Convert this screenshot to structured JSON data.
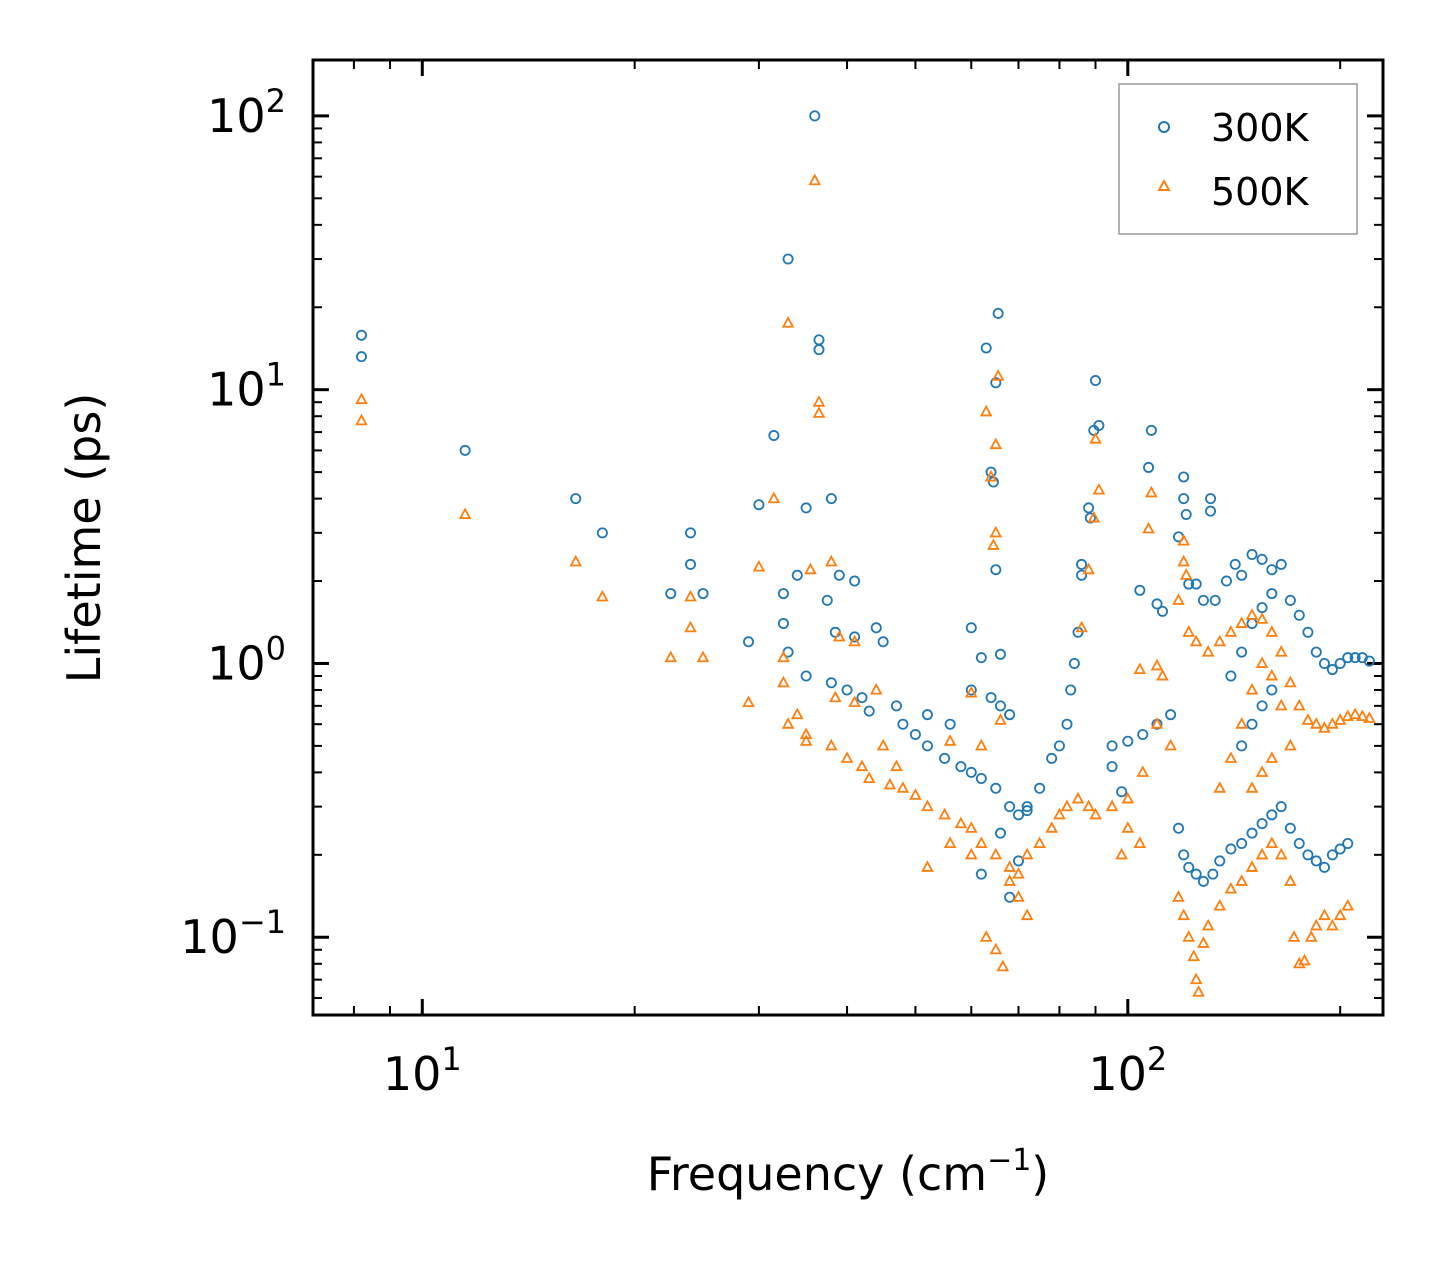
{
  "chart_data": {
    "type": "scatter",
    "xscale": "log",
    "yscale": "log",
    "xlim": [
      7.0,
      230
    ],
    "ylim": [
      0.052,
      160
    ],
    "xlabel": {
      "text": "Frequency (cm",
      "sup": "−1",
      "suffix": ")"
    },
    "ylabel": "Lifetime (ps)",
    "xticks": [
      {
        "value": 10,
        "base": "10",
        "exp": "1"
      },
      {
        "value": 100,
        "base": "10",
        "exp": "2"
      }
    ],
    "yticks": [
      {
        "value": 0.1,
        "base": "10",
        "exp": "−1"
      },
      {
        "value": 1,
        "base": "10",
        "exp": "0"
      },
      {
        "value": 10,
        "base": "10",
        "exp": "1"
      },
      {
        "value": 100,
        "base": "10",
        "exp": "2"
      }
    ],
    "legend": {
      "position": "top-right"
    },
    "series": [
      {
        "name": "300K",
        "marker": "circle",
        "color": "#1f77b4",
        "points": [
          [
            8.2,
            15.8
          ],
          [
            8.2,
            13.2
          ],
          [
            11.5,
            6.0
          ],
          [
            16.5,
            4.0
          ],
          [
            18,
            3.0
          ],
          [
            22.5,
            1.8
          ],
          [
            24,
            3.0
          ],
          [
            24,
            2.3
          ],
          [
            25,
            1.8
          ],
          [
            29,
            1.2
          ],
          [
            30,
            3.8
          ],
          [
            31.5,
            6.8
          ],
          [
            32.5,
            1.8
          ],
          [
            33,
            30.0
          ],
          [
            34,
            2.1
          ],
          [
            35,
            3.7
          ],
          [
            36,
            100
          ],
          [
            36.5,
            15.2
          ],
          [
            36.5,
            14.0
          ],
          [
            37.5,
            1.7
          ],
          [
            38,
            4.0
          ],
          [
            38.5,
            1.3
          ],
          [
            39,
            2.1
          ],
          [
            41,
            2.0
          ],
          [
            32.5,
            1.4
          ],
          [
            33,
            1.1
          ],
          [
            35,
            0.9
          ],
          [
            38,
            0.85
          ],
          [
            40,
            0.8
          ],
          [
            41,
            1.25
          ],
          [
            42,
            0.75
          ],
          [
            43,
            0.67
          ],
          [
            44,
            1.35
          ],
          [
            45,
            1.2
          ],
          [
            60,
            1.35
          ],
          [
            62,
            1.05
          ],
          [
            63,
            14.2
          ],
          [
            64,
            5.0
          ],
          [
            64.5,
            4.6
          ],
          [
            65,
            10.6
          ],
          [
            65.5,
            19.0
          ],
          [
            65,
            2.2
          ],
          [
            66,
            1.08
          ],
          [
            90,
            10.8
          ],
          [
            91,
            7.4
          ],
          [
            89.5,
            7.1
          ],
          [
            108,
            7.1
          ],
          [
            107,
            5.2
          ],
          [
            120,
            4.8
          ],
          [
            120,
            4.0
          ],
          [
            121,
            3.5
          ],
          [
            131,
            4.0
          ],
          [
            131,
            3.6
          ],
          [
            88,
            3.7
          ],
          [
            88.5,
            3.4
          ],
          [
            86,
            2.3
          ],
          [
            86,
            2.1
          ],
          [
            104,
            1.85
          ],
          [
            110,
            1.65
          ],
          [
            112,
            1.55
          ],
          [
            118,
            2.9
          ],
          [
            122,
            1.95
          ],
          [
            125,
            1.95
          ],
          [
            128,
            1.7
          ],
          [
            133,
            1.7
          ],
          [
            138,
            2.0
          ],
          [
            142,
            2.3
          ],
          [
            145,
            2.1
          ],
          [
            150,
            2.5
          ],
          [
            155,
            2.4
          ],
          [
            160,
            2.2
          ],
          [
            165,
            2.3
          ],
          [
            170,
            1.7
          ],
          [
            175,
            1.5
          ],
          [
            180,
            1.3
          ],
          [
            185,
            1.1
          ],
          [
            190,
            1.0
          ],
          [
            195,
            0.95
          ],
          [
            200,
            1.0
          ],
          [
            205,
            1.05
          ],
          [
            210,
            1.05
          ],
          [
            215,
            1.05
          ],
          [
            220,
            1.02
          ],
          [
            85,
            1.3
          ],
          [
            84,
            1.0
          ],
          [
            83,
            0.8
          ],
          [
            82,
            0.6
          ],
          [
            80,
            0.5
          ],
          [
            78,
            0.45
          ],
          [
            95,
            0.5
          ],
          [
            100,
            0.52
          ],
          [
            105,
            0.55
          ],
          [
            110,
            0.6
          ],
          [
            115,
            0.65
          ],
          [
            118,
            0.25
          ],
          [
            120,
            0.2
          ],
          [
            122,
            0.18
          ],
          [
            125,
            0.17
          ],
          [
            128,
            0.16
          ],
          [
            132,
            0.17
          ],
          [
            135,
            0.19
          ],
          [
            140,
            0.21
          ],
          [
            145,
            0.22
          ],
          [
            150,
            0.24
          ],
          [
            155,
            0.26
          ],
          [
            160,
            0.28
          ],
          [
            165,
            0.3
          ],
          [
            170,
            0.25
          ],
          [
            175,
            0.22
          ],
          [
            180,
            0.2
          ],
          [
            185,
            0.19
          ],
          [
            190,
            0.18
          ],
          [
            195,
            0.2
          ],
          [
            200,
            0.21
          ],
          [
            205,
            0.22
          ],
          [
            48,
            0.6
          ],
          [
            50,
            0.55
          ],
          [
            52,
            0.5
          ],
          [
            55,
            0.45
          ],
          [
            58,
            0.42
          ],
          [
            60,
            0.4
          ],
          [
            62,
            0.38
          ],
          [
            65,
            0.35
          ],
          [
            68,
            0.3
          ],
          [
            70,
            0.28
          ],
          [
            72,
            0.3
          ],
          [
            75,
            0.35
          ],
          [
            47,
            0.7
          ],
          [
            52,
            0.65
          ],
          [
            56,
            0.6
          ],
          [
            68,
            0.14
          ],
          [
            70,
            0.19
          ],
          [
            72,
            0.29
          ],
          [
            62,
            0.17
          ],
          [
            66,
            0.24
          ],
          [
            60,
            0.8
          ],
          [
            64,
            0.75
          ],
          [
            66,
            0.7
          ],
          [
            68,
            0.65
          ],
          [
            95,
            0.42
          ],
          [
            98,
            0.34
          ],
          [
            140,
            0.9
          ],
          [
            145,
            1.1
          ],
          [
            150,
            1.4
          ],
          [
            155,
            1.6
          ],
          [
            160,
            1.8
          ],
          [
            145,
            0.5
          ],
          [
            150,
            0.6
          ],
          [
            155,
            0.7
          ],
          [
            160,
            0.8
          ]
        ]
      },
      {
        "name": "500K",
        "marker": "triangle",
        "color": "#ff7f0e",
        "points": [
          [
            8.2,
            9.2
          ],
          [
            8.2,
            7.7
          ],
          [
            11.5,
            3.5
          ],
          [
            16.5,
            2.35
          ],
          [
            18,
            1.75
          ],
          [
            22.5,
            1.05
          ],
          [
            24,
            1.75
          ],
          [
            24,
            1.35
          ],
          [
            25,
            1.05
          ],
          [
            29,
            0.72
          ],
          [
            30,
            2.25
          ],
          [
            31.5,
            4.0
          ],
          [
            32.5,
            0.85
          ],
          [
            33,
            17.5
          ],
          [
            34,
            0.65
          ],
          [
            35,
            0.52
          ],
          [
            36,
            58
          ],
          [
            36.5,
            9.0
          ],
          [
            36.5,
            8.2
          ],
          [
            35.5,
            2.2
          ],
          [
            38,
            2.35
          ],
          [
            38.5,
            0.75
          ],
          [
            39,
            1.25
          ],
          [
            41,
            1.2
          ],
          [
            32.5,
            1.05
          ],
          [
            33,
            0.6
          ],
          [
            35,
            0.55
          ],
          [
            38,
            0.5
          ],
          [
            40,
            0.45
          ],
          [
            41,
            0.72
          ],
          [
            42,
            0.42
          ],
          [
            43,
            0.38
          ],
          [
            44,
            0.8
          ],
          [
            45,
            0.5
          ],
          [
            46,
            0.36
          ],
          [
            60,
            0.78
          ],
          [
            62,
            0.5
          ],
          [
            63,
            8.3
          ],
          [
            64,
            4.8
          ],
          [
            64.5,
            2.7
          ],
          [
            65,
            6.3
          ],
          [
            65.5,
            11.2
          ],
          [
            65,
            3.0
          ],
          [
            66,
            0.62
          ],
          [
            63,
            0.1
          ],
          [
            65,
            0.09
          ],
          [
            66.5,
            0.078
          ],
          [
            90,
            6.6
          ],
          [
            91,
            4.3
          ],
          [
            89.5,
            3.4
          ],
          [
            108,
            4.2
          ],
          [
            107,
            3.1
          ],
          [
            120,
            2.8
          ],
          [
            120,
            2.35
          ],
          [
            121,
            2.1
          ],
          [
            88,
            2.2
          ],
          [
            86,
            1.35
          ],
          [
            104,
            0.95
          ],
          [
            110,
            0.98
          ],
          [
            112,
            0.9
          ],
          [
            118,
            1.7
          ],
          [
            122,
            1.3
          ],
          [
            125,
            1.2
          ],
          [
            130,
            1.1
          ],
          [
            135,
            1.2
          ],
          [
            140,
            1.3
          ],
          [
            145,
            1.4
          ],
          [
            150,
            1.5
          ],
          [
            155,
            1.45
          ],
          [
            160,
            1.3
          ],
          [
            165,
            1.1
          ],
          [
            170,
            0.85
          ],
          [
            175,
            0.7
          ],
          [
            180,
            0.62
          ],
          [
            185,
            0.6
          ],
          [
            190,
            0.58
          ],
          [
            195,
            0.6
          ],
          [
            200,
            0.62
          ],
          [
            205,
            0.64
          ],
          [
            210,
            0.65
          ],
          [
            215,
            0.64
          ],
          [
            220,
            0.63
          ],
          [
            118,
            0.14
          ],
          [
            120,
            0.12
          ],
          [
            122,
            0.1
          ],
          [
            124,
            0.085
          ],
          [
            125,
            0.07
          ],
          [
            126,
            0.063
          ],
          [
            128,
            0.095
          ],
          [
            130,
            0.11
          ],
          [
            135,
            0.13
          ],
          [
            140,
            0.15
          ],
          [
            145,
            0.16
          ],
          [
            150,
            0.18
          ],
          [
            155,
            0.2
          ],
          [
            160,
            0.22
          ],
          [
            165,
            0.2
          ],
          [
            170,
            0.16
          ],
          [
            172,
            0.1
          ],
          [
            175,
            0.08
          ],
          [
            178,
            0.082
          ],
          [
            182,
            0.1
          ],
          [
            185,
            0.11
          ],
          [
            190,
            0.12
          ],
          [
            195,
            0.11
          ],
          [
            200,
            0.12
          ],
          [
            205,
            0.13
          ],
          [
            48,
            0.35
          ],
          [
            50,
            0.33
          ],
          [
            52,
            0.3
          ],
          [
            55,
            0.28
          ],
          [
            58,
            0.26
          ],
          [
            60,
            0.25
          ],
          [
            62,
            0.22
          ],
          [
            65,
            0.2
          ],
          [
            68,
            0.18
          ],
          [
            70,
            0.17
          ],
          [
            72,
            0.2
          ],
          [
            75,
            0.22
          ],
          [
            78,
            0.25
          ],
          [
            80,
            0.28
          ],
          [
            82,
            0.3
          ],
          [
            85,
            0.32
          ],
          [
            88,
            0.3
          ],
          [
            90,
            0.28
          ],
          [
            95,
            0.3
          ],
          [
            100,
            0.32
          ],
          [
            105,
            0.4
          ],
          [
            110,
            0.6
          ],
          [
            115,
            0.5
          ],
          [
            52,
            0.18
          ],
          [
            56,
            0.22
          ],
          [
            60,
            0.2
          ],
          [
            68,
            0.16
          ],
          [
            70,
            0.14
          ],
          [
            72,
            0.12
          ],
          [
            47,
            0.42
          ],
          [
            56,
            0.52
          ],
          [
            100,
            0.25
          ],
          [
            98,
            0.2
          ],
          [
            104,
            0.22
          ],
          [
            150,
            0.8
          ],
          [
            155,
            1.0
          ],
          [
            160,
            0.9
          ],
          [
            165,
            0.7
          ],
          [
            145,
            0.6
          ],
          [
            140,
            0.45
          ],
          [
            135,
            0.35
          ],
          [
            150,
            0.35
          ],
          [
            155,
            0.4
          ],
          [
            160,
            0.45
          ],
          [
            170,
            0.5
          ]
        ]
      }
    ]
  }
}
